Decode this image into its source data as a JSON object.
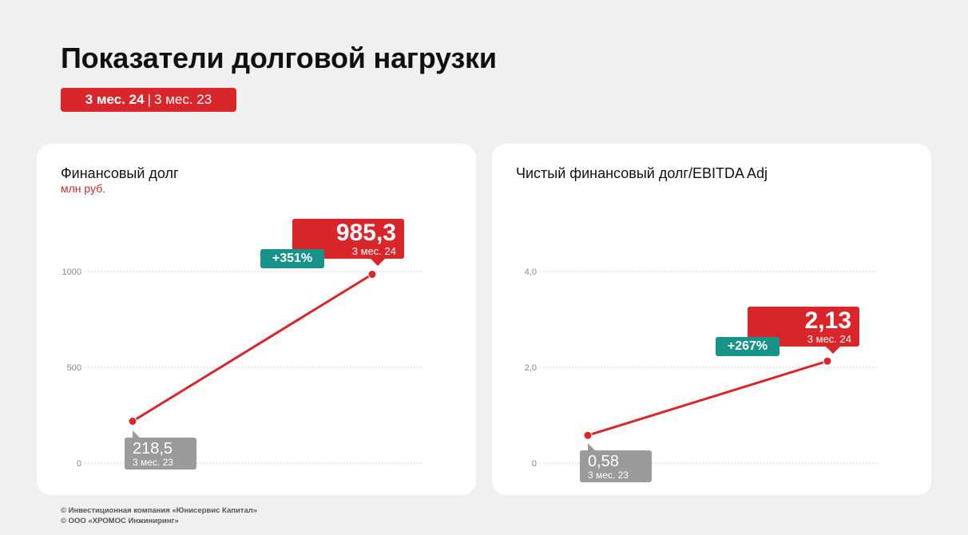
{
  "header": {
    "title": "Показатели долговой нагрузки",
    "period_current": "3 мес. 24",
    "period_separator": "|",
    "period_previous": "3 мес. 23"
  },
  "colors": {
    "accent_red": "#d9262b",
    "growth_teal": "#17938a",
    "previous_gray": "#9b9b9b"
  },
  "cards": [
    {
      "title": "Финансовый долг",
      "unit": "млн руб.",
      "callout_current": {
        "value": "985,3",
        "period": "3 мес. 24"
      },
      "callout_previous": {
        "value": "218,5",
        "period": "3 мес. 23"
      },
      "growth": "+351%"
    },
    {
      "title": "Чистый финансовый долг/EBITDA Adj",
      "unit": "",
      "callout_current": {
        "value": "2,13",
        "period": "3 мес. 24"
      },
      "callout_previous": {
        "value": "0,58",
        "period": "3 мес. 23"
      },
      "growth": "+267%"
    }
  ],
  "chart_data": [
    {
      "type": "line",
      "title": "Финансовый долг",
      "ylabel": "млн руб.",
      "categories": [
        "3 мес. 23",
        "3 мес. 24"
      ],
      "values": [
        218.5,
        985.3
      ],
      "ylim": [
        0,
        1000
      ],
      "yticks": [
        0,
        500,
        1000
      ],
      "ytick_labels": [
        "0",
        "500",
        "1000"
      ],
      "grid": true
    },
    {
      "type": "line",
      "title": "Чистый финансовый долг/EBITDA Adj",
      "categories": [
        "3 мес. 23",
        "3 мес. 24"
      ],
      "values": [
        0.58,
        2.13
      ],
      "ylim": [
        0,
        4
      ],
      "yticks": [
        0,
        2,
        4
      ],
      "ytick_labels": [
        "0",
        "2,0",
        "4,0"
      ],
      "grid": true
    }
  ],
  "footer": {
    "line1": "© Инвестиционная компания «Юнисервис Капитал»",
    "line2": "© ООО «ХРОМОС Инжиниринг»"
  }
}
